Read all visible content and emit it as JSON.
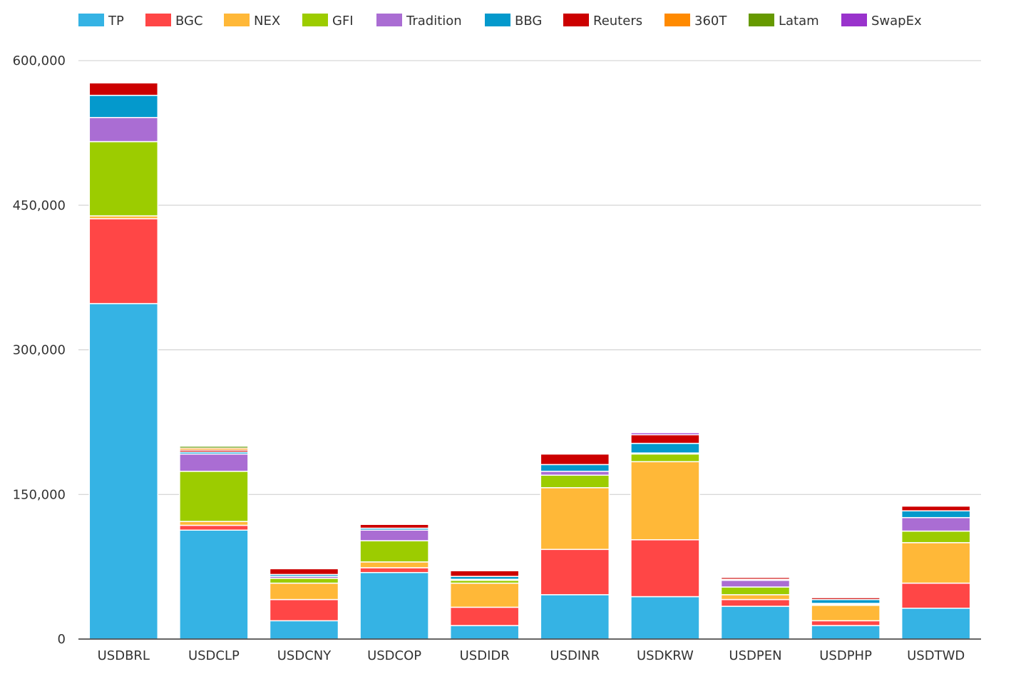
{
  "chart_data": {
    "type": "bar",
    "stacked": true,
    "legend_position": "top",
    "grid": true,
    "ylim": [
      0,
      600000
    ],
    "yticks": [
      0,
      150000,
      300000,
      450000,
      600000
    ],
    "ytick_labels": [
      "0",
      "150,000",
      "300,000",
      "450,000",
      "600,000"
    ],
    "categories": [
      "USDBRL",
      "USDCLP",
      "USDCNY",
      "USDCOP",
      "USDIDR",
      "USDINR",
      "USDKRW",
      "USDPEN",
      "USDPHP",
      "USDTWD"
    ],
    "series": [
      {
        "name": "TP",
        "color": "#35b3e4",
        "values": [
          348000,
          113000,
          19000,
          69000,
          14000,
          46000,
          44000,
          34000,
          14000,
          32000
        ]
      },
      {
        "name": "BGC",
        "color": "#ff4646",
        "values": [
          88000,
          5000,
          22000,
          5000,
          19000,
          47000,
          59000,
          7000,
          5000,
          26000
        ]
      },
      {
        "name": "NEX",
        "color": "#ffb838",
        "values": [
          3000,
          4000,
          17000,
          6000,
          25000,
          64000,
          81000,
          5000,
          16000,
          42000
        ]
      },
      {
        "name": "GFI",
        "color": "#9ccc00",
        "values": [
          77000,
          52000,
          5000,
          22000,
          3000,
          13000,
          8000,
          8000,
          1000,
          12000
        ]
      },
      {
        "name": "Tradition",
        "color": "#aa6dd3",
        "values": [
          25000,
          18000,
          2000,
          11000,
          1000,
          4000,
          1000,
          7000,
          1000,
          14000
        ]
      },
      {
        "name": "BBG",
        "color": "#0499cc",
        "values": [
          23000,
          2000,
          2000,
          2000,
          3000,
          7000,
          10000,
          1000,
          4000,
          7000
        ]
      },
      {
        "name": "Reuters",
        "color": "#cc0000",
        "values": [
          13000,
          2000,
          6000,
          4000,
          6000,
          11000,
          9000,
          2000,
          2000,
          5000
        ]
      },
      {
        "name": "360T",
        "color": "#ff8a00",
        "values": [
          1000,
          2000,
          0,
          1000,
          0,
          1000,
          0,
          0,
          1000,
          1000
        ]
      },
      {
        "name": "Latam",
        "color": "#669900",
        "values": [
          1000,
          2000,
          0,
          1000,
          0,
          0,
          0,
          1000,
          0,
          0
        ]
      },
      {
        "name": "SwapEx",
        "color": "#9933cc",
        "values": [
          0,
          0,
          1000,
          1000,
          1000,
          1000,
          2000,
          1000,
          1000,
          1000
        ]
      }
    ]
  }
}
